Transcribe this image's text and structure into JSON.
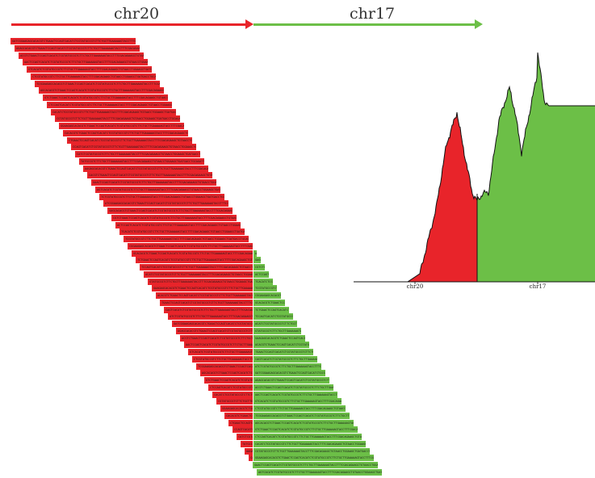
{
  "header": {
    "left_label": "chr20",
    "right_label": "chr17",
    "left_color": "#e8242a",
    "right_color": "#6cbf47"
  },
  "coverage": {
    "left_label": "chr20",
    "right_label": "chr17",
    "left_color": "#e8242a",
    "right_color": "#6cbf47"
  },
  "reads": {
    "left_color": "#e8242a",
    "right_color": "#6cbf47",
    "sequence": "GATCGGAAGAGCACACGTCTGAACTCCAGTCACATCTCGTATGCCGTCTTCTGCTTGAAAAAGTACCTTTCGACAGAAGCTGTAACCTGGAAGCTGATGACCTGCAGATTCCCAAGACTTCCTTACGGCTGAACGGTCGCAGATTCCAAGGCTGCAGGATCCATG"
  }
}
